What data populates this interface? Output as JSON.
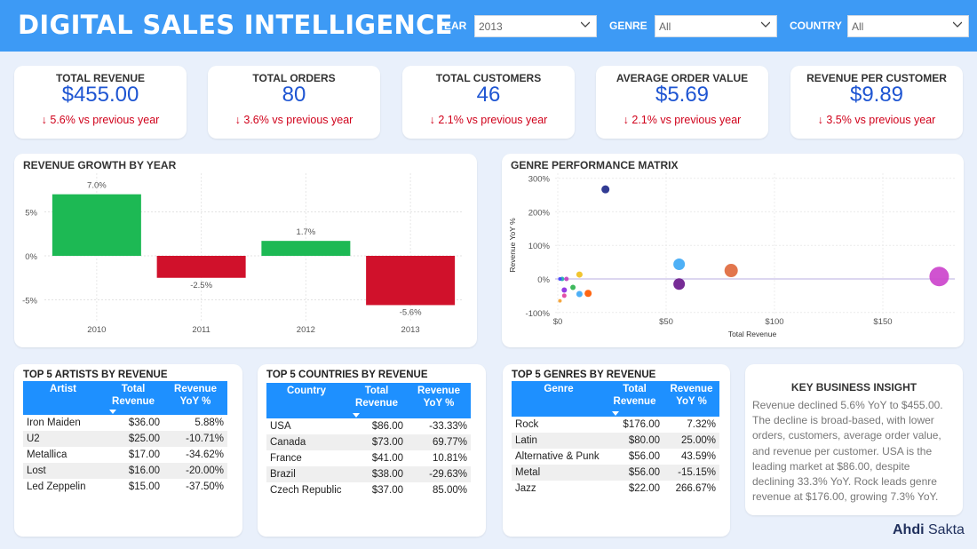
{
  "header": {
    "title": "DIGITAL SALES INTELLIGENCE",
    "filters": [
      {
        "label": "YEAR",
        "value": "2013"
      },
      {
        "label": "GENRE",
        "value": "All"
      },
      {
        "label": "COUNTRY",
        "value": "All"
      }
    ]
  },
  "kpis": [
    {
      "label": "TOTAL REVENUE",
      "value": "$455.00",
      "delta": "↓ 5.6% vs previous year"
    },
    {
      "label": "TOTAL ORDERS",
      "value": "80",
      "delta": "↓ 3.6% vs previous year"
    },
    {
      "label": "TOTAL CUSTOMERS",
      "value": "46",
      "delta": "↓ 2.1% vs previous year"
    },
    {
      "label": "AVERAGE ORDER VALUE",
      "value": "$5.69",
      "delta": "↓ 2.1% vs previous year"
    },
    {
      "label": "REVENUE PER CUSTOMER",
      "value": "$9.89",
      "delta": "↓ 3.5% vs previous year"
    }
  ],
  "colors": {
    "header": "#3d9af5",
    "kpi_value": "#1e55d2",
    "negative": "#d0021b",
    "bar_up": "#1db954",
    "bar_down": "#d0112b",
    "table_header": "#1e90ff"
  },
  "revenue_growth": {
    "title": "REVENUE GROWTH BY YEAR",
    "chart_data": {
      "type": "bar",
      "title": "REVENUE GROWTH BY YEAR",
      "categories": [
        "2010",
        "2011",
        "2012",
        "2013"
      ],
      "values": [
        7.0,
        -2.5,
        1.7,
        -5.6
      ],
      "data_labels": [
        "7.0%",
        "-2.5%",
        "1.7%",
        "-5.6%"
      ],
      "yticks": [
        "5%",
        "0%",
        "-5%"
      ],
      "ylim": [
        -7.5,
        9.5
      ],
      "grid": true
    }
  },
  "genre_matrix": {
    "title": "GENRE PERFORMANCE MATRIX",
    "chart_data": {
      "type": "scatter",
      "title": "GENRE PERFORMANCE MATRIX",
      "xlabel": "Total Revenue",
      "ylabel": "Revenue YoY %",
      "xticks": [
        "$0",
        "$50",
        "$100",
        "$150"
      ],
      "yticks": [
        "300%",
        "200%",
        "100%",
        "0%",
        "-100%"
      ],
      "xlim": [
        0,
        180
      ],
      "ylim": [
        -100,
        300
      ],
      "points": [
        {
          "x": 176,
          "y": 7.3,
          "color": "#cc44cc",
          "r": 11
        },
        {
          "x": 80,
          "y": 25,
          "color": "#e06a3e",
          "r": 7.5
        },
        {
          "x": 56,
          "y": 43.6,
          "color": "#3fa9f5",
          "r": 6.5
        },
        {
          "x": 56,
          "y": -15.2,
          "color": "#6b1a8c",
          "r": 6.5
        },
        {
          "x": 22,
          "y": 266.7,
          "color": "#1f2a8a",
          "r": 4.5
        },
        {
          "x": 10,
          "y": 13,
          "color": "#f0c020",
          "r": 3.5
        },
        {
          "x": 14,
          "y": -43,
          "color": "#ff5a00",
          "r": 4
        },
        {
          "x": 7,
          "y": -25,
          "color": "#2fb34f",
          "r": 3
        },
        {
          "x": 10,
          "y": -45,
          "color": "#3fa9f5",
          "r": 3.5
        },
        {
          "x": 3,
          "y": -33,
          "color": "#8a2be2",
          "r": 3
        },
        {
          "x": 3,
          "y": -50,
          "color": "#e040a0",
          "r": 2.5
        },
        {
          "x": 1,
          "y": -65,
          "color": "#f4a030",
          "r": 2
        },
        {
          "x": 2,
          "y": 0,
          "color": "#20b2aa",
          "r": 2.5
        },
        {
          "x": 4,
          "y": 0,
          "color": "#c040c0",
          "r": 2.5
        },
        {
          "x": 1,
          "y": 0,
          "color": "#4040ff",
          "r": 2
        }
      ]
    }
  },
  "top_artists": {
    "title": "TOP 5 ARTISTS BY REVENUE",
    "columns": [
      "Artist",
      "Total Revenue",
      "Revenue YoY %"
    ],
    "rows": [
      [
        "Iron Maiden",
        "$36.00",
        "5.88%"
      ],
      [
        "U2",
        "$25.00",
        "-10.71%"
      ],
      [
        "Metallica",
        "$17.00",
        "-34.62%"
      ],
      [
        "Lost",
        "$16.00",
        "-20.00%"
      ],
      [
        "Led Zeppelin",
        "$15.00",
        "-37.50%"
      ]
    ]
  },
  "top_countries": {
    "title": "TOP 5 COUNTRIES BY REVENUE",
    "columns": [
      "Country",
      "Total Revenue",
      "Revenue YoY %"
    ],
    "rows": [
      [
        "USA",
        "$86.00",
        "-33.33%"
      ],
      [
        "Canada",
        "$73.00",
        "69.77%"
      ],
      [
        "France",
        "$41.00",
        "10.81%"
      ],
      [
        "Brazil",
        "$38.00",
        "-29.63%"
      ],
      [
        "Czech Republic",
        "$37.00",
        "85.00%"
      ]
    ]
  },
  "top_genres": {
    "title": "TOP 5 GENRES BY REVENUE",
    "columns": [
      "Genre",
      "Total Revenue",
      "Revenue YoY %"
    ],
    "rows": [
      [
        "Rock",
        "$176.00",
        "7.32%"
      ],
      [
        "Latin",
        "$80.00",
        "25.00%"
      ],
      [
        "Alternative & Punk",
        "$56.00",
        "43.59%"
      ],
      [
        "Metal",
        "$56.00",
        "-15.15%"
      ],
      [
        "Jazz",
        "$22.00",
        "266.67%"
      ]
    ]
  },
  "insight": {
    "title": "KEY BUSINESS INSIGHT",
    "body": "Revenue declined 5.6% YoY to $455.00. The decline is broad-based, with lower orders, customers, average order value, and revenue per customer. USA is the leading market at $86.00, despite declining 33.3% YoY. Rock leads genre revenue at $176.00, growing 7.3% YoY."
  },
  "brand": {
    "part1": "Ahdi",
    "part2": "Sakta"
  }
}
